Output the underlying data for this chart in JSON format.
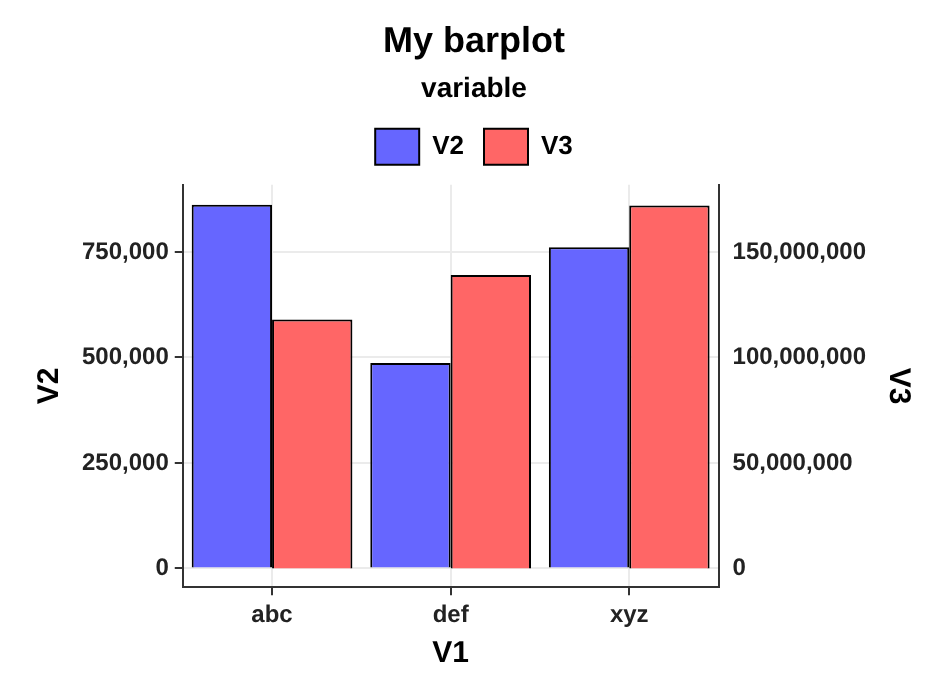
{
  "chart_data": {
    "type": "bar",
    "title": "My barplot",
    "xlabel": "V1",
    "ylabel": "V2",
    "y2label": "V3",
    "legend_title": "variable",
    "categories": [
      "abc",
      "def",
      "xyz"
    ],
    "series": [
      {
        "name": "V2",
        "color": "#6666ff",
        "values": [
          862000,
          487000,
          761000
        ]
      },
      {
        "name": "V3",
        "color": "#ff6666",
        "values": [
          118000000,
          139000000,
          172000000
        ],
        "axis": "y2"
      }
    ],
    "ylim": [
      -44500,
      909000
    ],
    "yticks": [
      {
        "value": 0,
        "label": "0"
      },
      {
        "value": 250000,
        "label": "250,000"
      },
      {
        "value": 500000,
        "label": "500,000"
      },
      {
        "value": 750000,
        "label": "750,000"
      }
    ],
    "y2lim": [
      -8900000,
      181800000
    ],
    "y2ticks": [
      {
        "value": 0,
        "label": "0"
      },
      {
        "value": 50000000,
        "label": "50,000,000"
      },
      {
        "value": 100000000,
        "label": "100,000,000"
      },
      {
        "value": 150000000,
        "label": "150,000,000"
      }
    ],
    "grid": true,
    "legend": "top"
  }
}
